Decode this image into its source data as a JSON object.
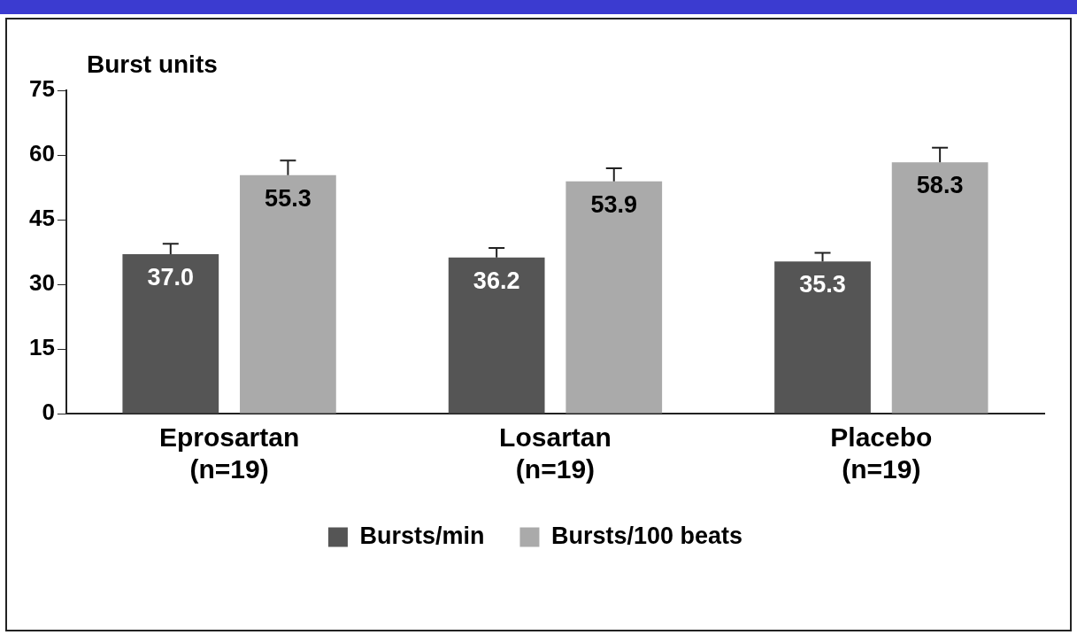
{
  "chart_data": {
    "type": "bar",
    "ylabel": "Burst units",
    "categories": [
      "Eprosartan\n(n=19)",
      "Losartan\n(n=19)",
      "Placebo\n(n=19)"
    ],
    "series": [
      {
        "name": "Bursts/min",
        "color": "#555555",
        "values": [
          37.0,
          36.2,
          35.3
        ],
        "value_labels": [
          "37.0",
          "36.2",
          "35.3"
        ],
        "errors": [
          [
            37.0,
            39.4
          ],
          [
            36.2,
            38.4
          ],
          [
            35.3,
            37.3
          ]
        ]
      },
      {
        "name": "Bursts/100 beats",
        "color": "#aaaaaa",
        "values": [
          55.3,
          53.9,
          58.3
        ],
        "value_labels": [
          "55.3",
          "53.9",
          "58.3"
        ],
        "errors": [
          [
            55.3,
            58.7
          ],
          [
            53.9,
            56.9
          ],
          [
            58.3,
            61.7
          ]
        ]
      }
    ],
    "ylim": [
      0,
      75
    ],
    "yticks": [
      0,
      15,
      30,
      45,
      60,
      75
    ],
    "grid": false,
    "legend": "bottom"
  }
}
